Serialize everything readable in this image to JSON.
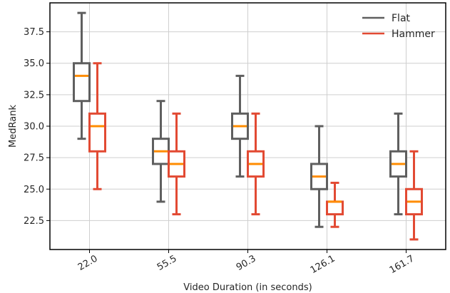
{
  "chart_data": {
    "type": "box",
    "xlabel": "Video Duration (in seconds)",
    "ylabel": "MedRank",
    "categories": [
      "22.0",
      "55.5",
      "90.3",
      "126.1",
      "161.7"
    ],
    "yticks": [
      "22.5",
      "25.0",
      "27.5",
      "30.0",
      "32.5",
      "35.0",
      "37.5"
    ],
    "ylim": [
      20.2,
      39.8
    ],
    "grid": true,
    "legend_position": "top-right",
    "median_color": "#ff8c00",
    "series": [
      {
        "name": "Flat",
        "color": "#5f5f5f",
        "boxes": [
          {
            "whislo": 29,
            "q1": 32,
            "med": 34,
            "q3": 35,
            "whishi": 39
          },
          {
            "whislo": 24,
            "q1": 27,
            "med": 28,
            "q3": 29,
            "whishi": 32
          },
          {
            "whislo": 26,
            "q1": 29,
            "med": 30,
            "q3": 31,
            "whishi": 34
          },
          {
            "whislo": 22,
            "q1": 25,
            "med": 26,
            "q3": 27,
            "whishi": 30
          },
          {
            "whislo": 23,
            "q1": 26,
            "med": 27,
            "q3": 28,
            "whishi": 31
          }
        ]
      },
      {
        "name": "Hammer",
        "color": "#e24a33",
        "boxes": [
          {
            "whislo": 25,
            "q1": 28,
            "med": 30,
            "q3": 31,
            "whishi": 35
          },
          {
            "whislo": 23,
            "q1": 26,
            "med": 27,
            "q3": 28,
            "whishi": 31
          },
          {
            "whislo": 23,
            "q1": 26,
            "med": 27,
            "q3": 28,
            "whishi": 31
          },
          {
            "whislo": 22,
            "q1": 23,
            "med": 24,
            "q3": 24,
            "whishi": 25.5
          },
          {
            "whislo": 21,
            "q1": 23,
            "med": 24,
            "q3": 25,
            "whishi": 28
          }
        ]
      }
    ]
  }
}
